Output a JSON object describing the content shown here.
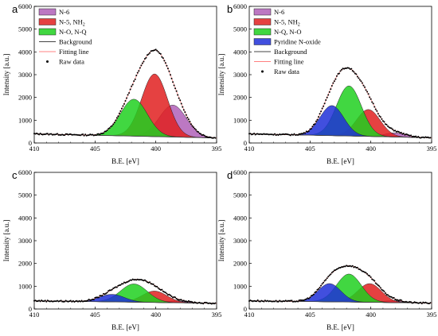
{
  "chart_data": [
    {
      "letter": "a",
      "type": "area",
      "xlabel": "B.E. [eV]",
      "ylabel": "Intensity [a.u.]",
      "xlim": [
        410,
        395
      ],
      "ylim": [
        0,
        6000
      ],
      "xticks": [
        "410",
        "405",
        "400",
        "395"
      ],
      "yticks": [
        "0",
        "1000",
        "2000",
        "3000",
        "4000",
        "5000",
        "6000"
      ],
      "background": {
        "x": [
          410,
          395
        ],
        "y": [
          400,
          220
        ]
      },
      "peaks": [
        {
          "name": "N-6",
          "center": 398.6,
          "height": 1400,
          "fwhm": 2.6,
          "color": "#b060b8"
        },
        {
          "name": "N-5, NH2",
          "center": 400.1,
          "height": 2750,
          "fwhm": 2.5,
          "color": "#e02020"
        },
        {
          "name": "N-O, N-Q",
          "center": 401.8,
          "height": 1620,
          "fwhm": 2.6,
          "color": "#20d020"
        }
      ],
      "legend": [
        {
          "label": "N-6",
          "kind": "box",
          "color": "#b060b8"
        },
        {
          "label": "N-5, NH",
          "sub": "2",
          "kind": "box",
          "color": "#e02020"
        },
        {
          "label": "N-O, N-Q",
          "kind": "box",
          "color": "#20d020"
        },
        {
          "label": "Background",
          "kind": "line",
          "color": "#444444"
        },
        {
          "label": "Fitting line",
          "kind": "line",
          "color": "#ff8080"
        },
        {
          "label": "Raw data",
          "kind": "dot",
          "color": "#000000"
        }
      ]
    },
    {
      "letter": "b",
      "type": "area",
      "xlabel": "B.E. [eV]",
      "ylabel": "Intensity [a.u.]",
      "xlim": [
        410,
        395
      ],
      "ylim": [
        0,
        6000
      ],
      "xticks": [
        "410",
        "405",
        "400",
        "395"
      ],
      "yticks": [
        "0",
        "1000",
        "2000",
        "3000",
        "4000",
        "5000",
        "6000"
      ],
      "background": {
        "x": [
          410,
          395
        ],
        "y": [
          400,
          230
        ]
      },
      "peaks": [
        {
          "name": "N-6",
          "center": 398.0,
          "height": 180,
          "fwhm": 2.0,
          "color": "#b060b8"
        },
        {
          "name": "N-5, NH2",
          "center": 400.2,
          "height": 1180,
          "fwhm": 2.3,
          "color": "#e02020"
        },
        {
          "name": "N-Q, N-O",
          "center": 401.8,
          "height": 2200,
          "fwhm": 2.4,
          "color": "#20d020"
        },
        {
          "name": "Pyridine N-oxide",
          "center": 403.2,
          "height": 1320,
          "fwhm": 2.3,
          "color": "#2030d8"
        }
      ],
      "legend": [
        {
          "label": "N-6",
          "kind": "box",
          "color": "#b060b8"
        },
        {
          "label": "N-5, NH",
          "sub": "2",
          "kind": "box",
          "color": "#e02020"
        },
        {
          "label": "N-Q, N-O",
          "kind": "box",
          "color": "#20d020"
        },
        {
          "label": "Pyridine N-oxide",
          "kind": "box",
          "color": "#2030d8"
        },
        {
          "label": "Background",
          "kind": "line",
          "color": "#444444"
        },
        {
          "label": "Fitting line",
          "kind": "line",
          "color": "#ff8080"
        },
        {
          "label": "Raw data",
          "kind": "dot",
          "color": "#000000"
        }
      ]
    },
    {
      "letter": "c",
      "type": "area",
      "xlabel": "B.E. [eV]",
      "ylabel": "Intensity [a.u.]",
      "xlim": [
        410,
        395
      ],
      "ylim": [
        0,
        6000
      ],
      "xticks": [
        "410",
        "405",
        "400",
        "395"
      ],
      "yticks": [
        "0",
        "1000",
        "2000",
        "3000",
        "4000",
        "5000",
        "6000"
      ],
      "background": {
        "x": [
          410,
          395
        ],
        "y": [
          360,
          250
        ]
      },
      "peaks": [
        {
          "name": "N-6",
          "center": 398.2,
          "height": 80,
          "fwhm": 2.0,
          "color": "#b060b8"
        },
        {
          "name": "N-5, NH2",
          "center": 400.1,
          "height": 500,
          "fwhm": 2.4,
          "color": "#e02020"
        },
        {
          "name": "N-Q, N-O",
          "center": 401.8,
          "height": 800,
          "fwhm": 2.6,
          "color": "#20d020"
        },
        {
          "name": "Pyridine N-oxide",
          "center": 403.6,
          "height": 330,
          "fwhm": 2.4,
          "color": "#2030d8"
        }
      ],
      "legend": []
    },
    {
      "letter": "d",
      "type": "area",
      "xlabel": "B.E. [eV]",
      "ylabel": "Intensity [a.u.]",
      "xlim": [
        410,
        395
      ],
      "ylim": [
        0,
        6000
      ],
      "xticks": [
        "410",
        "405",
        "400",
        "395"
      ],
      "yticks": [
        "0",
        "1000",
        "2000",
        "3000",
        "4000",
        "5000",
        "6000"
      ],
      "background": {
        "x": [
          410,
          395
        ],
        "y": [
          360,
          260
        ]
      },
      "peaks": [
        {
          "name": "N-6",
          "center": 398.2,
          "height": 80,
          "fwhm": 2.0,
          "color": "#b060b8"
        },
        {
          "name": "N-5, NH2",
          "center": 400.1,
          "height": 820,
          "fwhm": 2.3,
          "color": "#e02020"
        },
        {
          "name": "N-Q, N-O",
          "center": 401.8,
          "height": 1230,
          "fwhm": 2.4,
          "color": "#20d020"
        },
        {
          "name": "Pyridine N-oxide",
          "center": 403.4,
          "height": 800,
          "fwhm": 2.2,
          "color": "#2030d8"
        }
      ],
      "legend": []
    }
  ]
}
